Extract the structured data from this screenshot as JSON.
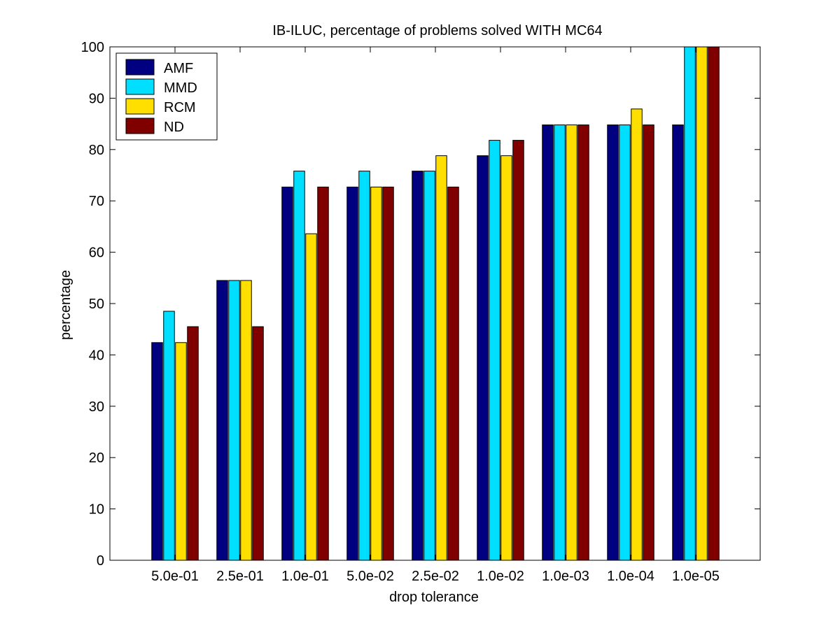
{
  "chart_data": {
    "type": "bar",
    "title": "IB-ILUC, percentage of problems solved WITH MC64",
    "xlabel": "drop tolerance",
    "ylabel": "percentage",
    "ylim": [
      0,
      100
    ],
    "yticks": [
      0,
      10,
      20,
      30,
      40,
      50,
      60,
      70,
      80,
      90,
      100
    ],
    "categories": [
      "5.0e-01",
      "2.5e-01",
      "1.0e-01",
      "5.0e-02",
      "2.5e-02",
      "1.0e-02",
      "1.0e-03",
      "1.0e-04",
      "1.0e-05"
    ],
    "series": [
      {
        "name": "AMF",
        "color": "#000080",
        "values": [
          42.4,
          54.5,
          72.7,
          72.7,
          75.8,
          78.8,
          84.8,
          84.8,
          84.8
        ]
      },
      {
        "name": "MMD",
        "color": "#00dfff",
        "values": [
          48.5,
          54.5,
          75.8,
          75.8,
          75.8,
          81.8,
          84.8,
          84.8,
          100
        ]
      },
      {
        "name": "RCM",
        "color": "#ffdf00",
        "values": [
          42.4,
          54.5,
          63.6,
          72.7,
          78.8,
          78.8,
          84.8,
          87.9,
          100
        ]
      },
      {
        "name": " ND",
        "color": "#800000",
        "values": [
          45.5,
          45.5,
          72.7,
          72.7,
          72.7,
          81.8,
          84.8,
          84.8,
          100
        ]
      }
    ],
    "legend_position": "top-left",
    "grid": false
  }
}
